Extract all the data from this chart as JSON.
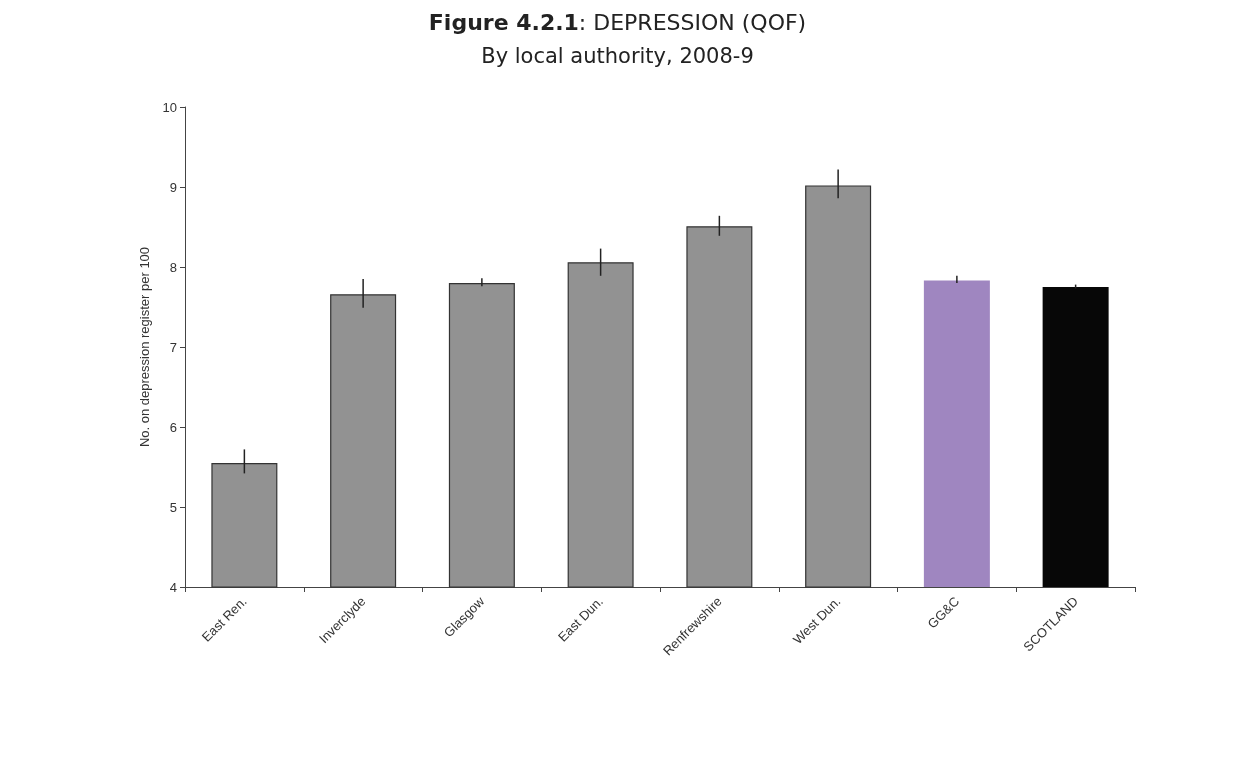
{
  "chart_data": {
    "type": "bar",
    "title": "Figure 4.2.1: DEPRESSION (QOF)",
    "subtitle": "By local authority, 2008-9",
    "ylabel": "No. on depression register per 100",
    "categories": [
      "East Ren.",
      "Inverclyde",
      "Glasgow",
      "East Dun.",
      "Renfrewshire",
      "West Dun.",
      "GG&C",
      "SCOTLAND"
    ],
    "values": [
      5.55,
      7.66,
      7.8,
      8.06,
      8.51,
      9.02,
      7.83,
      7.75
    ],
    "colors": [
      "#929292",
      "#929292",
      "#929292",
      "#929292",
      "#929292",
      "#929292",
      "#9f86c0",
      "#070707"
    ],
    "errors": [
      [
        5.42,
        5.72
      ],
      [
        7.49,
        7.85
      ],
      [
        7.76,
        7.86
      ],
      [
        7.89,
        8.23
      ],
      [
        8.39,
        8.64
      ],
      [
        8.86,
        9.22
      ],
      [
        7.8,
        7.89
      ],
      [
        7.73,
        7.78
      ]
    ],
    "ylim": [
      4,
      10
    ],
    "yticks": [
      4,
      5,
      6,
      7,
      8,
      9,
      10
    ],
    "grid": false
  }
}
